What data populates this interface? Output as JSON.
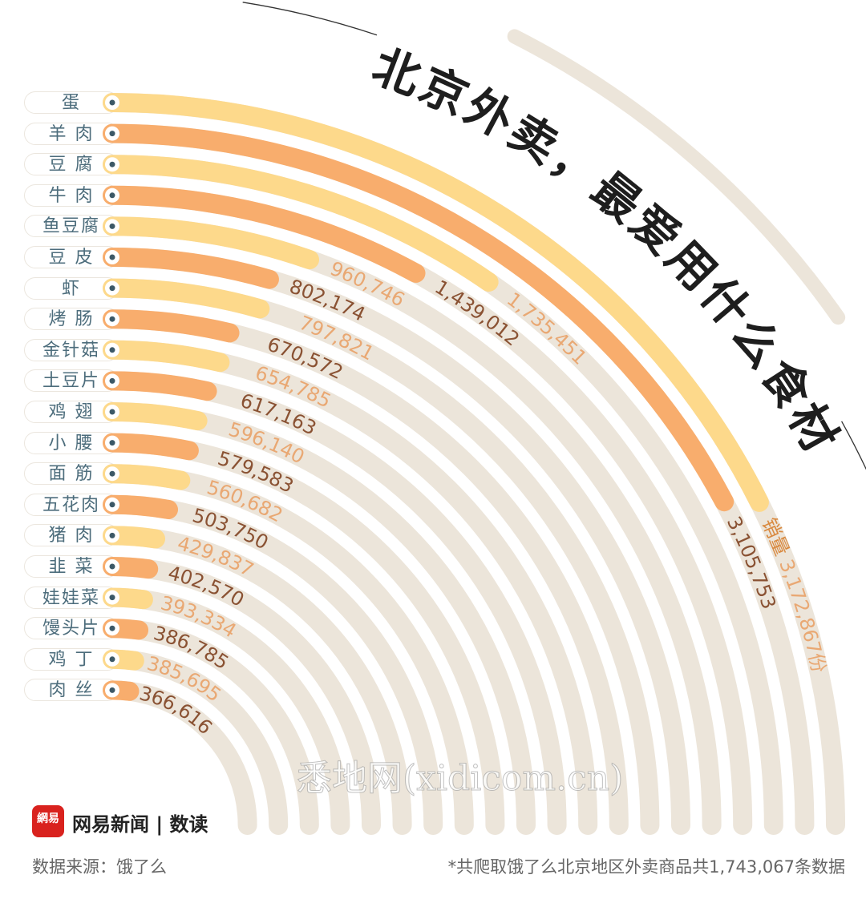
{
  "title": "北京外卖，最爱用什么食材",
  "chart_data": {
    "type": "radial-bar",
    "title": "北京外卖，最爱用什么食材",
    "unit_label": "销量",
    "unit_suffix": "份",
    "categories": [
      "蛋",
      "羊 肉",
      "豆 腐",
      "牛 肉",
      "鱼豆腐",
      "豆 皮",
      "虾",
      "烤 肠",
      "金针菇",
      "土豆片",
      "鸡 翅",
      "小 腰",
      "面 筋",
      "五花肉",
      "猪 肉",
      "韭 菜",
      "娃娃菜",
      "馒头片",
      "鸡 丁",
      "肉 丝"
    ],
    "values": [
      3172867,
      3105753,
      1735451,
      1439012,
      960746,
      802174,
      797821,
      670572,
      654785,
      617163,
      596140,
      579583,
      560682,
      503750,
      429837,
      402570,
      393334,
      386785,
      385695,
      366616
    ],
    "value_labels": [
      "3,172,867",
      "3,105,753",
      "1,735,451",
      "1,439,012",
      "960,746",
      "802,174",
      "797,821",
      "670,572",
      "654,785",
      "617,163",
      "596,140",
      "579,583",
      "560,682",
      "503,750",
      "429,837",
      "402,570",
      "393,334",
      "386,785",
      "385,695",
      "366,616"
    ],
    "axis_max": 4500000
  },
  "colors": {
    "yellow": "#fdd98b",
    "orange": "#f8ad6d",
    "track": "#ece5da",
    "label_light": "#e9a873",
    "label_dark": "#8a5233",
    "title": "#1e1e1e"
  },
  "footer": {
    "logo_text": "網易",
    "brand": "网易新闻 | 数读",
    "source": "数据来源：饿了么",
    "note": "*共爬取饿了么北京地区外卖商品共1,743,067条数据"
  },
  "watermark": "悉地网(xidicom.cn)"
}
